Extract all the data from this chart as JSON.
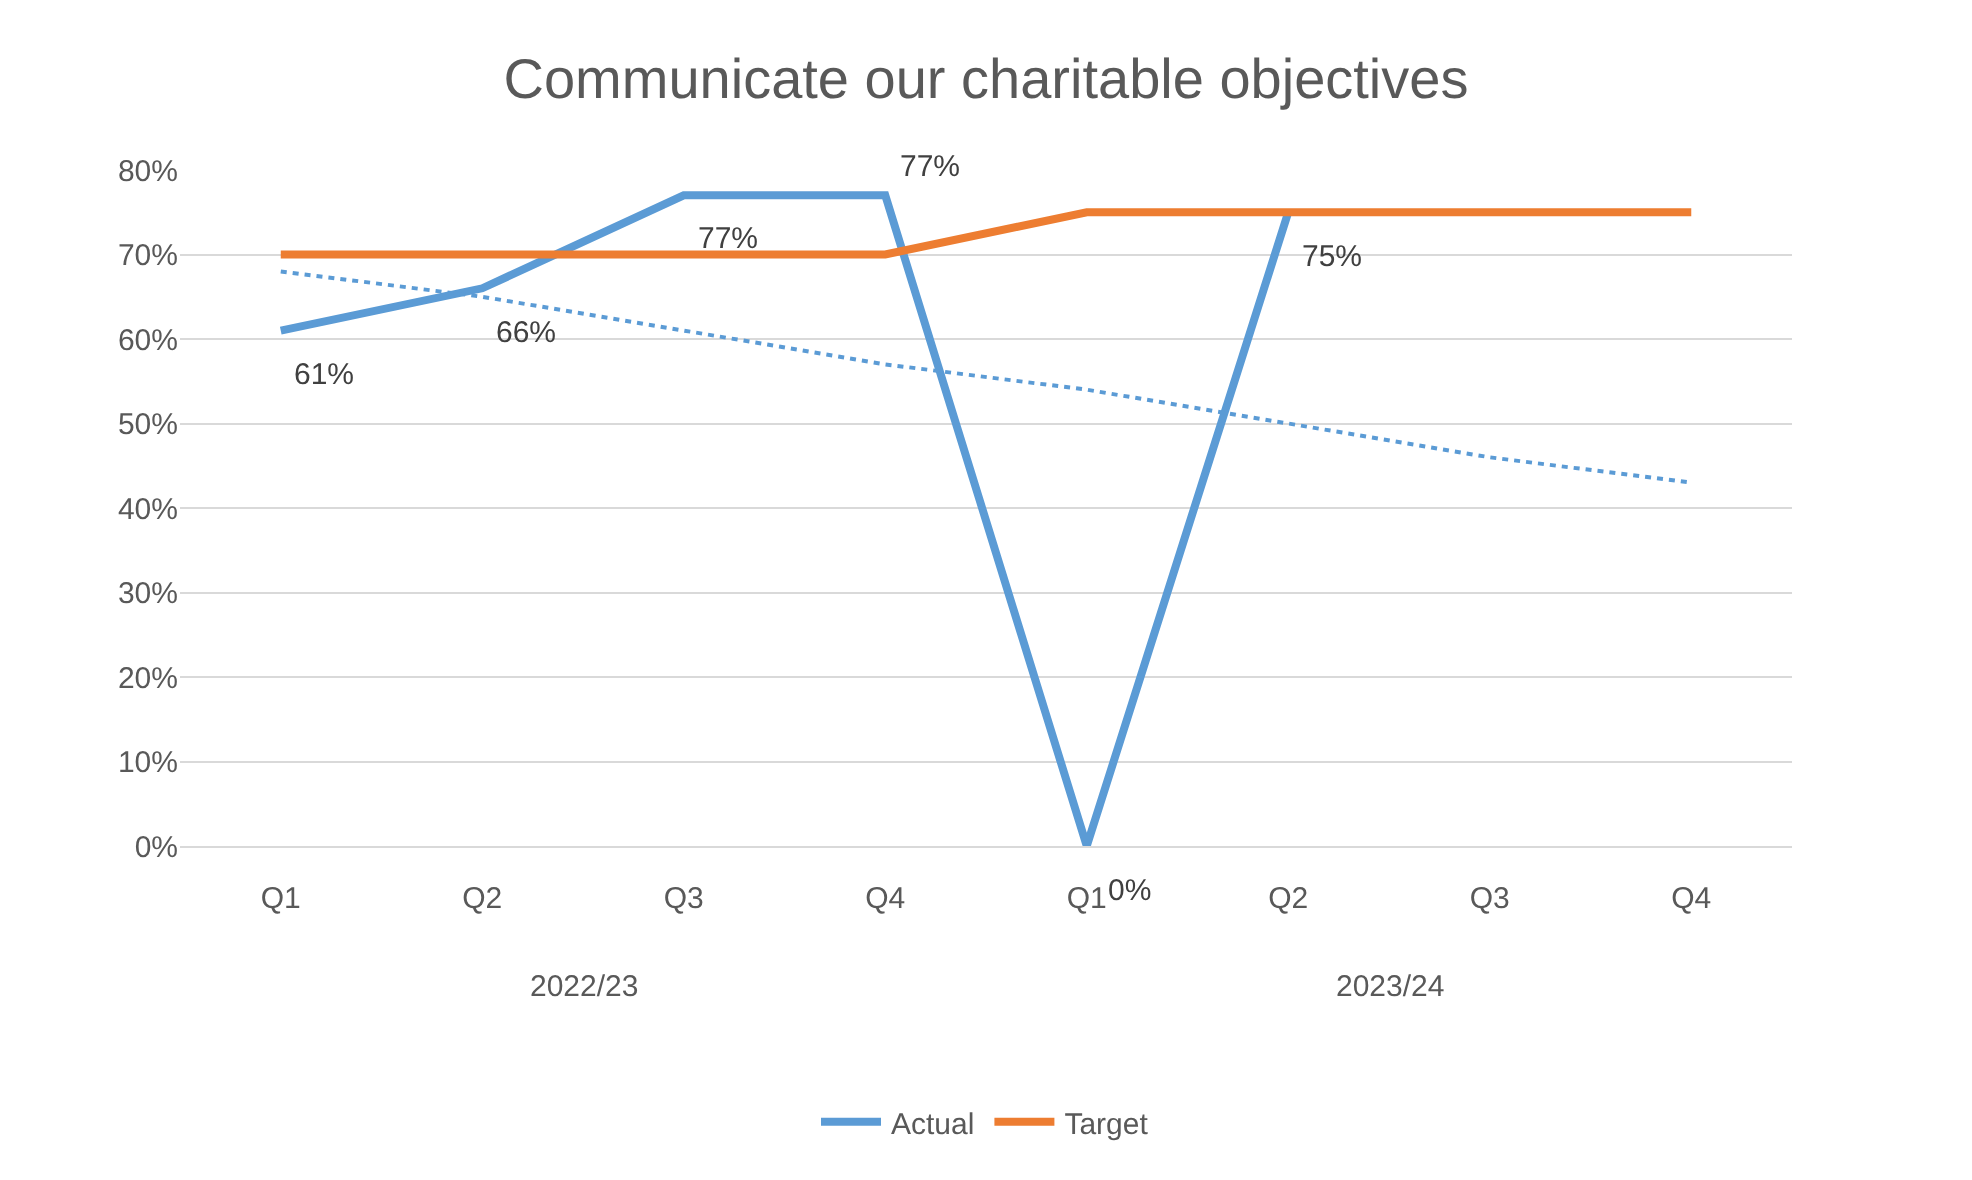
{
  "chart_data": {
    "type": "line",
    "title": "Communicate our charitable objectives",
    "categories": [
      "Q1",
      "Q2",
      "Q3",
      "Q4",
      "Q1",
      "Q2",
      "Q3",
      "Q4"
    ],
    "series": [
      {
        "name": "Actual",
        "color": "#5b9bd5",
        "values": [
          61,
          66,
          77,
          77,
          0,
          75,
          null,
          null
        ],
        "value_labels": [
          "61%",
          "66%",
          "77%",
          "77%",
          "0%",
          "75%",
          null,
          null
        ],
        "line_style": "solid"
      },
      {
        "name": "Target",
        "color": "#ed7d31",
        "values": [
          70,
          70,
          70,
          70,
          75,
          75,
          75,
          75
        ],
        "line_style": "solid"
      },
      {
        "color": "#5b9bd5",
        "values": [
          68,
          65,
          61,
          57,
          54,
          50,
          46,
          43
        ],
        "line_style": "dotted"
      }
    ],
    "annotations": [
      "2022/23",
      "2023/24"
    ],
    "ylim": [
      0,
      80
    ],
    "yticks": [
      {
        "value": 0,
        "label": "0%"
      },
      {
        "value": 10,
        "label": "10%"
      },
      {
        "value": 20,
        "label": "20%"
      },
      {
        "value": 30,
        "label": "30%"
      },
      {
        "value": 40,
        "label": "40%"
      },
      {
        "value": 50,
        "label": "50%"
      },
      {
        "value": 60,
        "label": "60%"
      },
      {
        "value": 70,
        "label": "70%"
      },
      {
        "value": 80,
        "label": "80%"
      }
    ],
    "grid": "y",
    "legend": "bottom",
    "marker": "none"
  }
}
